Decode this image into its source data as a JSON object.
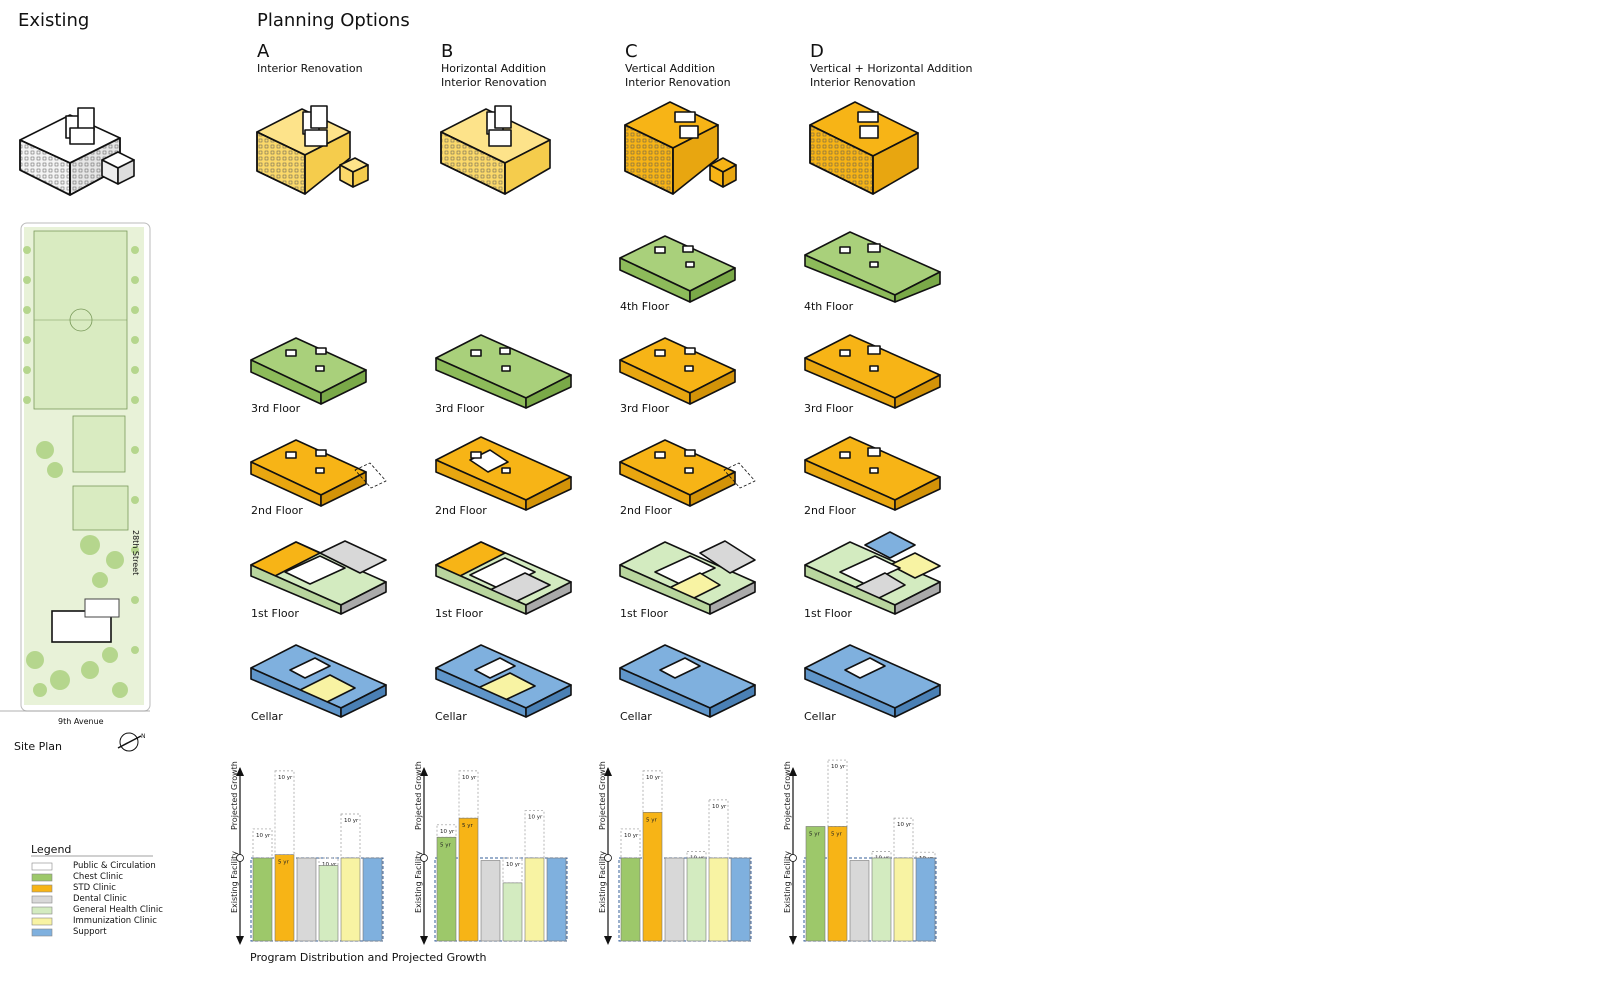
{
  "headings": {
    "existing": "Existing",
    "planning": "Planning Options"
  },
  "options": [
    {
      "letter": "A",
      "desc": "Interior Renovation"
    },
    {
      "letter": "B",
      "desc": "Horizontal Addition\nInterior Renovation"
    },
    {
      "letter": "C",
      "desc": "Vertical Addition\nInterior Renovation"
    },
    {
      "letter": "D",
      "desc": "Vertical + Horizontal Addition\nInterior Renovation"
    }
  ],
  "floors": {
    "fourth": "4th Floor",
    "third": "3rd Floor",
    "second": "2nd Floor",
    "first": "1st Floor",
    "cellar": "Cellar"
  },
  "site": {
    "street": "28th Street",
    "avenue": "9th Avenue",
    "label": "Site Plan",
    "north": "N"
  },
  "legend": {
    "title": "Legend",
    "items": [
      {
        "label": "Public & Circulation",
        "color": "#ffffff"
      },
      {
        "label": "Chest Clinic",
        "color": "#9dc86a"
      },
      {
        "label": "STD Clinic",
        "color": "#f7b416"
      },
      {
        "label": "Dental Clinic",
        "color": "#d8d8d8"
      },
      {
        "label": "General Health Clinic",
        "color": "#d3ebc0"
      },
      {
        "label": "Immunization Clinic",
        "color": "#f8f3a3"
      },
      {
        "label": "Support",
        "color": "#7fb0de"
      }
    ]
  },
  "chart_labels": {
    "growth": "Projected Growth",
    "existing": "Existing Facility",
    "caption": "Program Distribution and Projected Growth",
    "ten": "10 yr",
    "five": "5 yr"
  },
  "colors": {
    "public": "#ffffff",
    "chest": "#9dc86a",
    "std": "#f7b416",
    "dental": "#d8d8d8",
    "general": "#d3ebc0",
    "immun": "#f8f3a3",
    "support": "#7fb0de",
    "green_floor": "#a9d07b",
    "orange_floor": "#f7b416",
    "blue_floor": "#7fb0de",
    "building_yellow": "#fbd96a"
  },
  "chart_data": [
    {
      "type": "bar",
      "option": "A",
      "series": [
        {
          "name": "Chest Clinic",
          "existing": 1.0,
          "five_yr": 1.0,
          "ten_yr": 1.35
        },
        {
          "name": "STD Clinic",
          "existing": 1.0,
          "five_yr": 1.04,
          "ten_yr": 2.05
        },
        {
          "name": "Dental Clinic",
          "existing": 1.0,
          "five_yr": 1.0,
          "ten_yr": 1.0
        },
        {
          "name": "General Health Clinic",
          "existing": 0.91,
          "five_yr": 0.91,
          "ten_yr": 1.0
        },
        {
          "name": "Immunization Clinic",
          "existing": 1.0,
          "five_yr": 1.0,
          "ten_yr": 1.53
        },
        {
          "name": "Support",
          "existing": 1.0,
          "five_yr": 1.0,
          "ten_yr": 1.0
        }
      ]
    },
    {
      "type": "bar",
      "option": "B",
      "series": [
        {
          "name": "Chest Clinic",
          "existing": 1.0,
          "five_yr": 1.25,
          "ten_yr": 1.4
        },
        {
          "name": "STD Clinic",
          "existing": 1.0,
          "five_yr": 1.48,
          "ten_yr": 2.05
        },
        {
          "name": "Dental Clinic",
          "existing": 0.97,
          "five_yr": 0.97,
          "ten_yr": 0.97
        },
        {
          "name": "General Health Clinic",
          "existing": 0.7,
          "five_yr": 0.7,
          "ten_yr": 1.0
        },
        {
          "name": "Immunization Clinic",
          "existing": 1.0,
          "five_yr": 1.0,
          "ten_yr": 1.57
        },
        {
          "name": "Support",
          "existing": 1.0,
          "five_yr": 1.0,
          "ten_yr": 1.0
        }
      ]
    },
    {
      "type": "bar",
      "option": "C",
      "series": [
        {
          "name": "Chest Clinic",
          "existing": 1.0,
          "five_yr": 1.0,
          "ten_yr": 1.35
        },
        {
          "name": "STD Clinic",
          "existing": 1.0,
          "five_yr": 1.55,
          "ten_yr": 2.05
        },
        {
          "name": "Dental Clinic",
          "existing": 1.0,
          "five_yr": 1.0,
          "ten_yr": 1.0
        },
        {
          "name": "General Health Clinic",
          "existing": 1.0,
          "five_yr": 1.0,
          "ten_yr": 1.08
        },
        {
          "name": "Immunization Clinic",
          "existing": 1.0,
          "five_yr": 1.0,
          "ten_yr": 1.7
        },
        {
          "name": "Support",
          "existing": 1.0,
          "five_yr": 1.0,
          "ten_yr": 1.0
        }
      ]
    },
    {
      "type": "bar",
      "option": "D",
      "series": [
        {
          "name": "Chest Clinic",
          "existing": 1.0,
          "five_yr": 1.38,
          "ten_yr": 1.38
        },
        {
          "name": "STD Clinic",
          "existing": 1.0,
          "five_yr": 1.38,
          "ten_yr": 2.18
        },
        {
          "name": "Dental Clinic",
          "existing": 0.97,
          "five_yr": 0.97,
          "ten_yr": 0.97
        },
        {
          "name": "General Health Clinic",
          "existing": 1.0,
          "five_yr": 1.0,
          "ten_yr": 1.08
        },
        {
          "name": "Immunization Clinic",
          "existing": 1.0,
          "five_yr": 1.0,
          "ten_yr": 1.48
        },
        {
          "name": "Support",
          "existing": 1.0,
          "five_yr": 1.0,
          "ten_yr": 1.07
        }
      ]
    }
  ]
}
